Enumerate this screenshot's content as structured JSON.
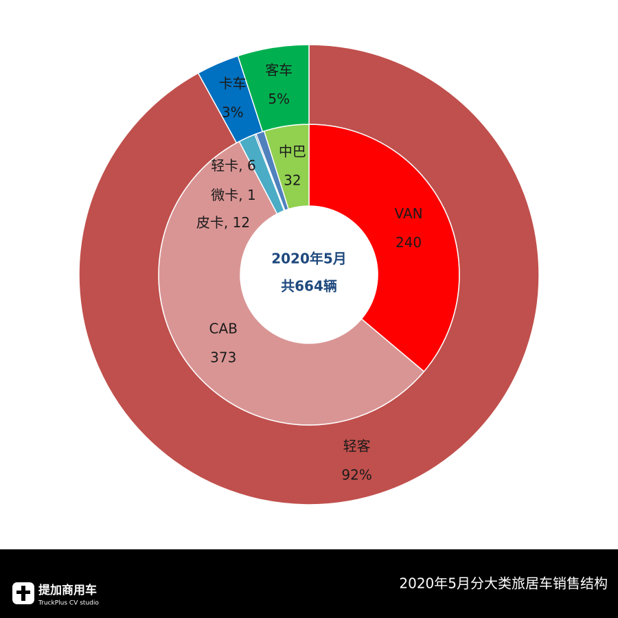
{
  "chart_data": {
    "type": "nested-donut",
    "title": "2020年5月分大类旅居车销售结构",
    "center_text": [
      "2020年5月",
      "共664辆"
    ],
    "brand": {
      "name": "提加商用车",
      "tagline": "TruckPlus CV studio"
    },
    "rings": [
      {
        "categories": [
          "VAN",
          "CAB",
          "皮卡",
          "微卡",
          "轻卡",
          "中巴"
        ],
        "values": [
          240,
          373,
          12,
          1,
          6,
          32
        ],
        "value_labels": [
          "240",
          "373",
          ", 12",
          ", 1",
          ", 6",
          "32"
        ],
        "colors": [
          "#ff0000",
          "#d99594",
          "#4bacc6",
          "#1f497d",
          "#4f81bd",
          "#92d050"
        ]
      },
      {
        "categories": [
          "轻客",
          "卡车",
          "客车"
        ],
        "values": [
          92,
          3,
          5
        ],
        "value_labels": [
          "92%",
          "3%",
          "5%"
        ],
        "colors": [
          "#c0504d",
          "#0070c0",
          "#00b050"
        ]
      }
    ]
  }
}
